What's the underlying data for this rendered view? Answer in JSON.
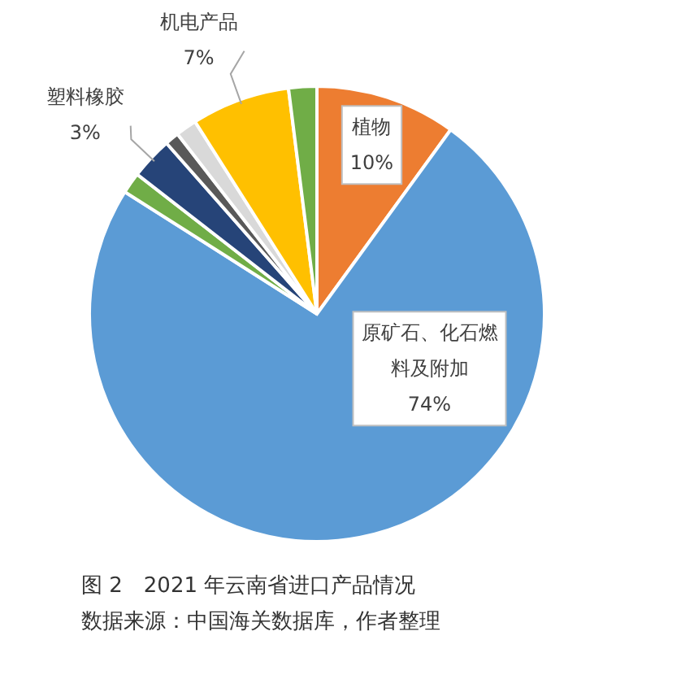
{
  "chart_data": {
    "type": "pie",
    "title": "图 2　2021 年云南省进口产品情况",
    "annotations": [
      "数据来源：中国海关数据库，作者整理"
    ],
    "categories": [
      "植物",
      "原矿石、化石燃料及附加",
      null,
      "塑料橡胶",
      null,
      null,
      "机电产品",
      null
    ],
    "values": [
      10,
      74,
      1.5,
      3,
      1,
      1.5,
      7,
      2
    ],
    "value_labels": [
      "10%",
      "74%",
      null,
      "3%",
      null,
      null,
      "7%",
      null
    ],
    "colors": [
      "#ed7d31",
      "#5b9bd5",
      "#70ad47",
      "#264478",
      "#595959",
      "#d9d9d9",
      "#ffc000",
      "#70ad47"
    ]
  }
}
